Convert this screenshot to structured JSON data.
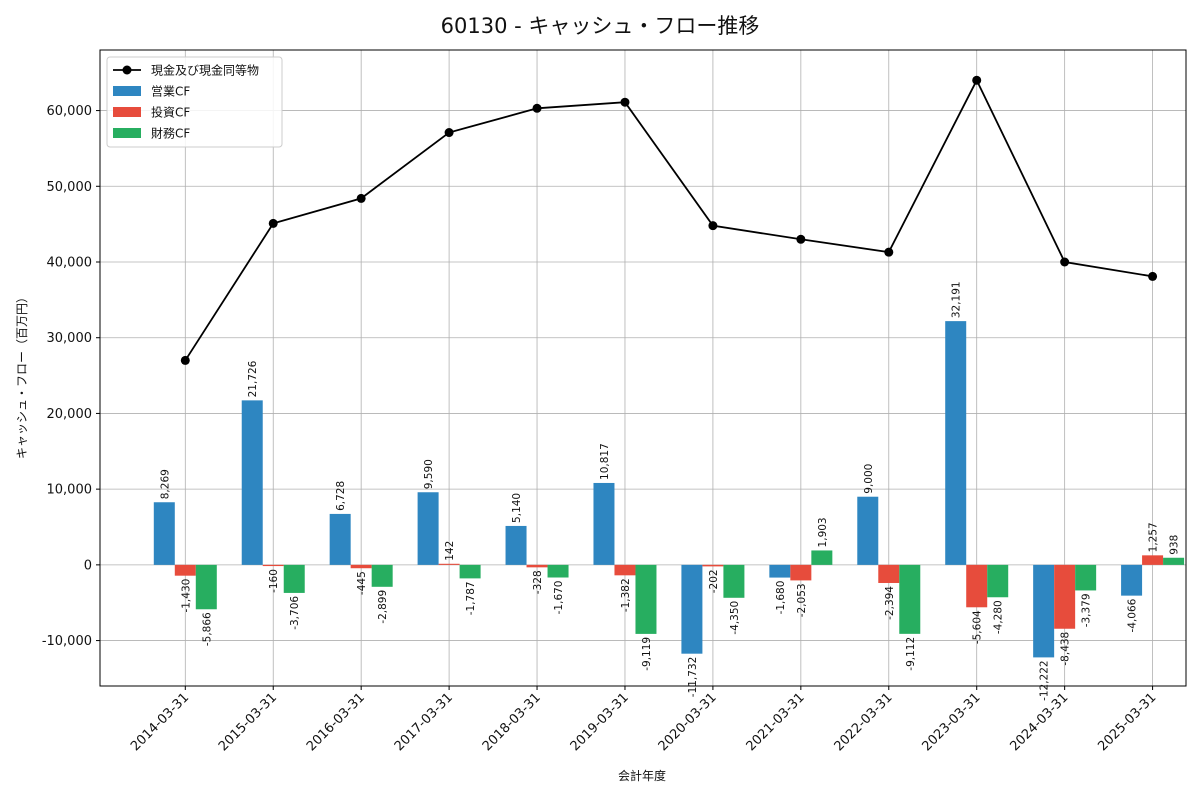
{
  "chart_data": {
    "type": "bar",
    "title": "60130 - キャッシュ・フロー推移",
    "xlabel": "会計年度",
    "ylabel": "キャッシュ・フロー（百万円）",
    "categories": [
      "2014-03-31",
      "2015-03-31",
      "2016-03-31",
      "2017-03-31",
      "2018-03-31",
      "2019-03-31",
      "2020-03-31",
      "2021-03-31",
      "2022-03-31",
      "2023-03-31",
      "2024-03-31",
      "2025-03-31"
    ],
    "ylim": [
      -16000,
      68000
    ],
    "yticks": [
      -10000,
      0,
      10000,
      20000,
      30000,
      40000,
      50000,
      60000
    ],
    "ytick_labels": [
      "-10,000",
      "0",
      "10,000",
      "20,000",
      "30,000",
      "40,000",
      "50,000",
      "60,000"
    ],
    "grid": true,
    "legend_position": "top-left",
    "series": [
      {
        "name": "営業CF",
        "kind": "bar",
        "color": "#2e86c1",
        "values": [
          8269,
          21726,
          6728,
          9590,
          5140,
          10817,
          -11732,
          -1680,
          9000,
          32191,
          -12222,
          -4066
        ],
        "labels": [
          "8,269",
          "21,726",
          "6,728",
          "9,590",
          "5,140",
          "10,817",
          "-11,732",
          "-1,680",
          "9,000",
          "32,191",
          "-12,222",
          "-4,066"
        ]
      },
      {
        "name": "投資CF",
        "kind": "bar",
        "color": "#e74c3c",
        "values": [
          -1430,
          -160,
          -445,
          142,
          -328,
          -1382,
          -202,
          -2053,
          -2394,
          -5604,
          -8438,
          1257
        ],
        "labels": [
          "-1,430",
          "-160",
          "-445",
          "142",
          "-328",
          "-1,382",
          "-202",
          "-2,053",
          "-2,394",
          "-5,604",
          "-8,438",
          "1,257"
        ]
      },
      {
        "name": "財務CF",
        "kind": "bar",
        "color": "#27ae60",
        "values": [
          -5866,
          -3706,
          -2899,
          -1787,
          -1670,
          -9119,
          -4350,
          1903,
          -9112,
          -4280,
          -3379,
          938
        ],
        "labels": [
          "-5,866",
          "-3,706",
          "-2,899",
          "-1,787",
          "-1,670",
          "-9,119",
          "-4,350",
          "1,903",
          "-9,112",
          "-4,280",
          "-3,379",
          "938"
        ]
      },
      {
        "name": "現金及び現金同等物",
        "kind": "line",
        "color": "#000000",
        "values": [
          27000,
          45100,
          48400,
          57100,
          60300,
          61100,
          44800,
          43000,
          41300,
          64000,
          40000,
          38100
        ]
      }
    ]
  }
}
